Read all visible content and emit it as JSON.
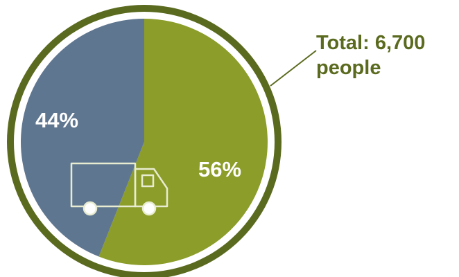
{
  "chart_data": {
    "type": "pie",
    "title": "",
    "slices": [
      {
        "label": "56%",
        "value": 56,
        "color": "#8c9d2a"
      },
      {
        "label": "44%",
        "value": 44,
        "color": "#5f7690"
      }
    ],
    "annotation": {
      "line1": "Total: 6,700",
      "line2": "people"
    },
    "center_icon": "truck-icon"
  },
  "colors": {
    "outer_ring": "#5a6a1e",
    "inner_ring": "#ffffff",
    "callout_text": "#5a6a1e",
    "icon_stroke": "#e8ecd0",
    "label_text": "#ffffff"
  }
}
